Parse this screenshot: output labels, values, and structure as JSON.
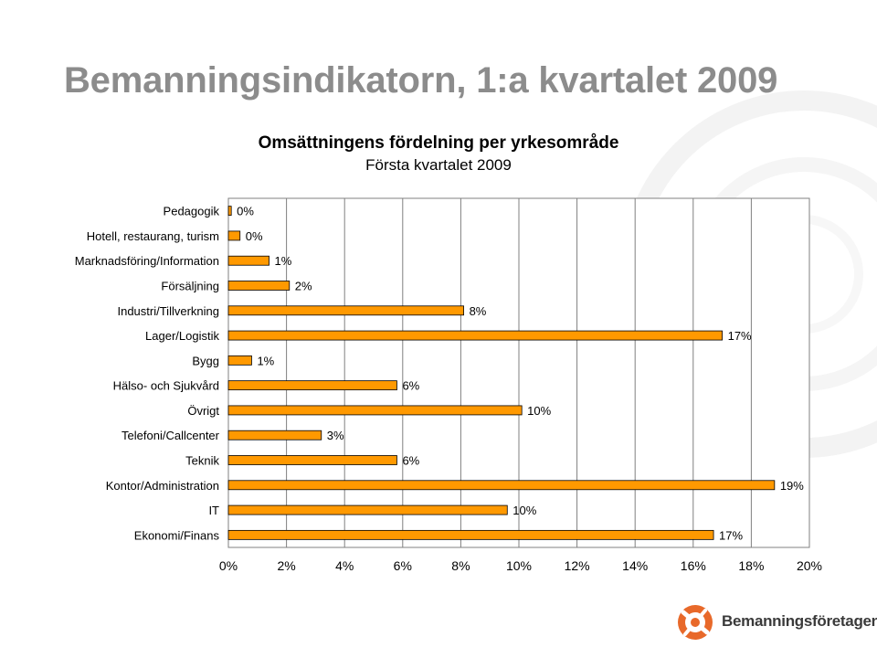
{
  "slide": {
    "title": "Bemanningsindikatorn, 1:a kvartalet 2009"
  },
  "logo": {
    "text": "Bemanningsföretagen",
    "mark_color": "#e8692a"
  },
  "chart_data": {
    "type": "bar",
    "orientation": "horizontal",
    "title": "Omsättningens fördelning per yrkesområde",
    "subtitle": "Första kvartalet 2009",
    "categories": [
      "Pedagogik",
      "Hotell, restaurang, turism",
      "Marknadsföring/Information",
      "Försäljning",
      "Industri/Tillverkning",
      "Lager/Logistik",
      "Bygg",
      "Hälso- och Sjukvård",
      "Övrigt",
      "Telefoni/Callcenter",
      "Teknik",
      "Kontor/Administration",
      "IT",
      "Ekonomi/Finans"
    ],
    "values": [
      0.1,
      0.4,
      1.4,
      2.1,
      8.1,
      17.0,
      0.8,
      5.8,
      10.1,
      3.2,
      5.8,
      18.8,
      9.6,
      16.7
    ],
    "data_labels": [
      "0%",
      "0%",
      "1%",
      "2%",
      "8%",
      "17%",
      "1%",
      "6%",
      "10%",
      "3%",
      "6%",
      "19%",
      "10%",
      "17%"
    ],
    "xlim": [
      0,
      20
    ],
    "xticks": [
      "0%",
      "2%",
      "4%",
      "6%",
      "8%",
      "10%",
      "12%",
      "14%",
      "16%",
      "18%",
      "20%"
    ],
    "xtick_values": [
      0,
      2,
      4,
      6,
      8,
      10,
      12,
      14,
      16,
      18,
      20
    ],
    "grid": true,
    "bar_color": "#ff9900",
    "bar_edge_color": "#000000"
  }
}
